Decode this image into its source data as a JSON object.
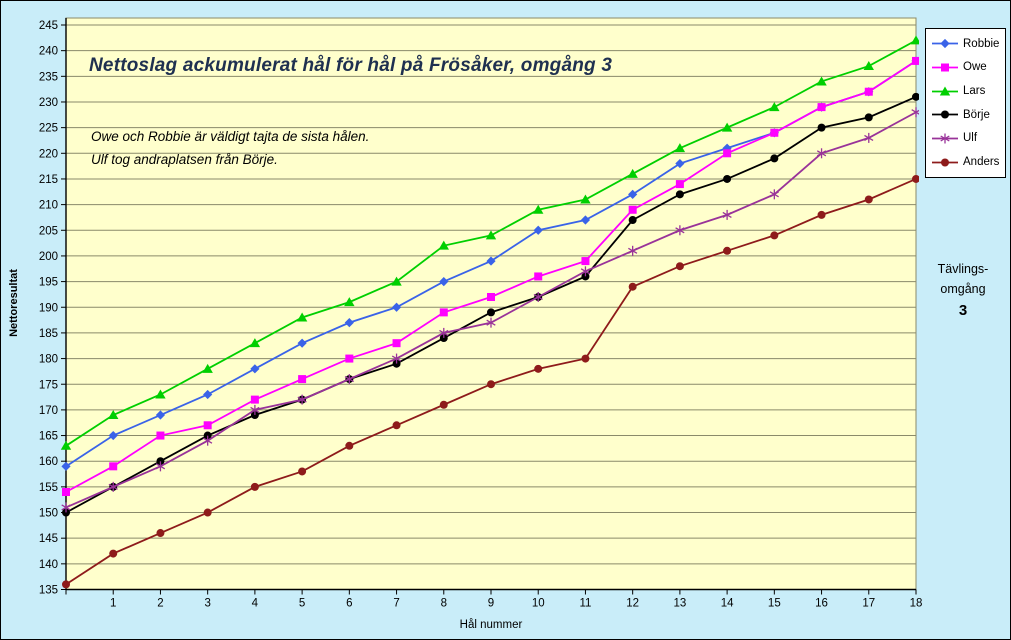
{
  "colors": {
    "background": "#C9EDF9",
    "plot_bg": "#FFFFCC",
    "grid": "#8A8A6A",
    "axis": "#000000",
    "legend_bg": "#FFFFFF",
    "legend_border": "#000000"
  },
  "chart_data": {
    "type": "line",
    "title": "Nettoslag ackumulerat hål för hål på Frösåker, omgång 3",
    "annotation": [
      "Owe och Robbie är väldigt tajta de sista hålen.",
      "Ulf tog andraplatsen från Börje."
    ],
    "xlabel": "Hål nummer",
    "ylabel": "Nettoresultat",
    "ylim": [
      135,
      245
    ],
    "ytick_step": 5,
    "x": [
      0,
      1,
      2,
      3,
      4,
      5,
      6,
      7,
      8,
      9,
      10,
      11,
      12,
      13,
      14,
      15,
      16,
      17,
      18
    ],
    "xtick_labels": [
      "1",
      "2",
      "3",
      "4",
      "5",
      "6",
      "7",
      "8",
      "9",
      "10",
      "11",
      "12",
      "13",
      "14",
      "15",
      "16",
      "17",
      "18"
    ],
    "grid": true,
    "legend_position": "right",
    "series": [
      {
        "name": "Robbie",
        "color": "#3A63E8",
        "marker": "diamond",
        "values": [
          159,
          165,
          169,
          173,
          178,
          183,
          187,
          190,
          195,
          199,
          205,
          207,
          212,
          218,
          221,
          224,
          229,
          232,
          238
        ]
      },
      {
        "name": "Owe",
        "color": "#FF00FF",
        "marker": "square",
        "values": [
          154,
          159,
          165,
          167,
          172,
          176,
          180,
          183,
          189,
          192,
          196,
          199,
          209,
          214,
          220,
          224,
          229,
          232,
          238
        ]
      },
      {
        "name": "Lars",
        "color": "#00CF00",
        "marker": "triangle",
        "values": [
          163,
          169,
          173,
          178,
          183,
          188,
          191,
          195,
          202,
          204,
          209,
          211,
          216,
          221,
          225,
          229,
          234,
          237,
          242
        ]
      },
      {
        "name": "Börje",
        "color": "#000000",
        "marker": "circle",
        "values": [
          150,
          155,
          160,
          165,
          169,
          172,
          176,
          179,
          184,
          189,
          192,
          196,
          207,
          212,
          215,
          219,
          225,
          227,
          231
        ]
      },
      {
        "name": "Ulf",
        "color": "#993399",
        "marker": "asterisk",
        "values": [
          151,
          155,
          159,
          164,
          170,
          172,
          176,
          180,
          185,
          187,
          192,
          197,
          201,
          205,
          208,
          212,
          220,
          223,
          228
        ]
      },
      {
        "name": "Anders",
        "color": "#8E1B1B",
        "marker": "circle",
        "values": [
          136,
          142,
          146,
          150,
          155,
          158,
          163,
          167,
          171,
          175,
          178,
          180,
          194,
          198,
          201,
          204,
          208,
          211,
          215
        ]
      }
    ]
  },
  "side_label": {
    "lines": [
      "Tävlings-",
      "omgång"
    ],
    "round_number": "3"
  }
}
